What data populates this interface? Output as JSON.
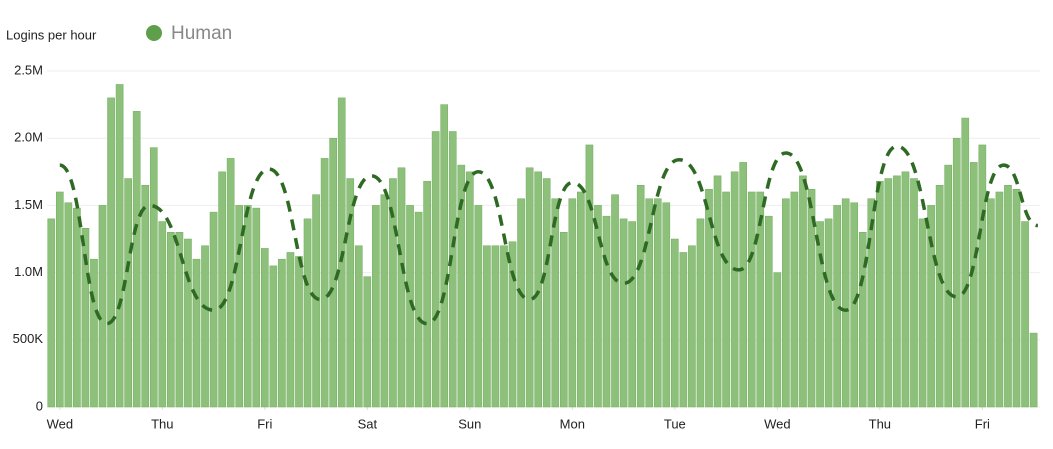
{
  "chart_data": {
    "type": "bar",
    "y_label": "Logins per hour",
    "x": [
      -2,
      0,
      2,
      4,
      6,
      8,
      10,
      12,
      14,
      16,
      18,
      20,
      22,
      24,
      26,
      28,
      30,
      32,
      34,
      36,
      38,
      40,
      42,
      44,
      46,
      48,
      50,
      52,
      54,
      56,
      58,
      60,
      62,
      64,
      66,
      68,
      70,
      72,
      74,
      76,
      78,
      80,
      82,
      84,
      86,
      88,
      90,
      92,
      94,
      96,
      98,
      100,
      102,
      104,
      106,
      108,
      110,
      112,
      114,
      116,
      118,
      120,
      122,
      124,
      126,
      128,
      130,
      132,
      134,
      136,
      138,
      140,
      142,
      144,
      146,
      148,
      150,
      152,
      154,
      156,
      158,
      160,
      162,
      164,
      166,
      168,
      170,
      172,
      174,
      176,
      178,
      180,
      182,
      184,
      186,
      188,
      190,
      192,
      194,
      196,
      198,
      200,
      202,
      204,
      206,
      208,
      210,
      212,
      214,
      216,
      218,
      220,
      222,
      224,
      226,
      228
    ],
    "series": [
      {
        "name": "Human",
        "color": "#8dc07a",
        "values": [
          1400000,
          1600000,
          1520000,
          1480000,
          1330000,
          1100000,
          1500000,
          2300000,
          2400000,
          1700000,
          2200000,
          1650000,
          1930000,
          1380000,
          1300000,
          1300000,
          1250000,
          1100000,
          1200000,
          1450000,
          1750000,
          1850000,
          1500000,
          1500000,
          1480000,
          1180000,
          1050000,
          1100000,
          1150000,
          1120000,
          1400000,
          1580000,
          1850000,
          2000000,
          2300000,
          1700000,
          1200000,
          970000,
          1500000,
          1580000,
          1700000,
          1780000,
          1500000,
          1450000,
          1680000,
          2050000,
          2250000,
          2050000,
          1800000,
          1750000,
          1500000,
          1200000,
          1200000,
          1200000,
          1230000,
          1550000,
          1780000,
          1750000,
          1700000,
          1550000,
          1300000,
          1550000,
          1600000,
          1950000,
          1500000,
          1420000,
          1580000,
          1400000,
          1380000,
          1650000,
          1550000,
          1550000,
          1520000,
          1250000,
          1150000,
          1200000,
          1400000,
          1620000,
          1720000,
          1600000,
          1750000,
          1820000,
          1600000,
          1600000,
          1420000,
          1000000,
          1550000,
          1600000,
          1720000,
          1620000,
          1380000,
          1400000,
          1500000,
          1550000,
          1520000,
          1300000,
          1550000,
          1680000,
          1700000,
          1720000,
          1750000,
          1700000,
          1400000,
          1500000,
          1650000,
          1800000,
          2000000,
          2150000,
          1820000,
          1950000,
          1550000,
          1600000,
          1650000,
          1620000,
          1380000,
          550000
        ]
      },
      {
        "color": "#2e6a24",
        "style": "dashed",
        "x": [
          0,
          11,
          21,
          36,
          49,
          61,
          73,
          86,
          98,
          110,
          120,
          132,
          145,
          159,
          170,
          184,
          196,
          210,
          221,
          229
        ],
        "values": [
          1800000,
          620000,
          1500000,
          720000,
          1770000,
          800000,
          1720000,
          620000,
          1750000,
          800000,
          1670000,
          920000,
          1840000,
          1020000,
          1890000,
          720000,
          1940000,
          820000,
          1800000,
          1350000
        ]
      }
    ],
    "legend_color": "#5d9f4b",
    "xlim": [
      -3,
      229.5
    ],
    "xticks": [
      {
        "value": 0,
        "label": "Wed"
      },
      {
        "value": 24,
        "label": "Thu"
      },
      {
        "value": 48,
        "label": "Fri"
      },
      {
        "value": 72,
        "label": "Sat"
      },
      {
        "value": 96,
        "label": "Sun"
      },
      {
        "value": 120,
        "label": "Mon"
      },
      {
        "value": 144,
        "label": "Tue"
      },
      {
        "value": 168,
        "label": "Wed"
      },
      {
        "value": 192,
        "label": "Thu"
      },
      {
        "value": 216,
        "label": "Fri"
      }
    ],
    "ylim": [
      0,
      2500000
    ],
    "yticks": [
      0,
      {
        "value": 500000,
        "label": "500K"
      },
      {
        "value": 1000000,
        "label": "1.0M"
      },
      {
        "value": 1500000,
        "label": "1.5M"
      },
      {
        "value": 2000000,
        "label": "2.0M"
      },
      {
        "value": 2500000,
        "label": "2.5M"
      }
    ],
    "grid": true
  }
}
